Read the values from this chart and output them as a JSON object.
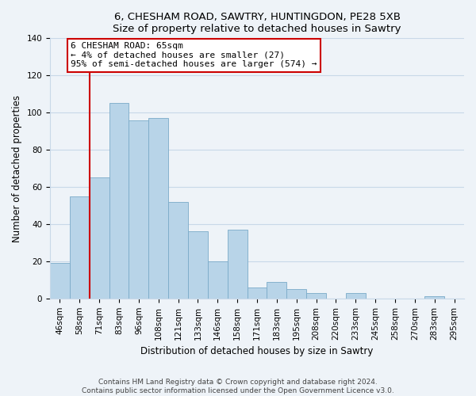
{
  "title_line1": "6, CHESHAM ROAD, SAWTRY, HUNTINGDON, PE28 5XB",
  "title_line2": "Size of property relative to detached houses in Sawtry",
  "xlabel": "Distribution of detached houses by size in Sawtry",
  "ylabel": "Number of detached properties",
  "categories": [
    "46sqm",
    "58sqm",
    "71sqm",
    "83sqm",
    "96sqm",
    "108sqm",
    "121sqm",
    "133sqm",
    "146sqm",
    "158sqm",
    "171sqm",
    "183sqm",
    "195sqm",
    "208sqm",
    "220sqm",
    "233sqm",
    "245sqm",
    "258sqm",
    "270sqm",
    "283sqm",
    "295sqm"
  ],
  "values": [
    19,
    55,
    65,
    105,
    96,
    97,
    52,
    36,
    20,
    37,
    6,
    9,
    5,
    3,
    0,
    3,
    0,
    0,
    0,
    1,
    0
  ],
  "bar_color": "#b8d4e8",
  "bar_edge_color": "#7aaac8",
  "vline_x": 1.5,
  "vline_color": "#cc0000",
  "annotation_line1": "6 CHESHAM ROAD: 65sqm",
  "annotation_line2": "← 4% of detached houses are smaller (27)",
  "annotation_line3": "95% of semi-detached houses are larger (574) →",
  "annotation_box_edgecolor": "#cc0000",
  "annotation_box_facecolor": "#ffffff",
  "ylim": [
    0,
    140
  ],
  "yticks": [
    0,
    20,
    40,
    60,
    80,
    100,
    120,
    140
  ],
  "footer_line1": "Contains HM Land Registry data © Crown copyright and database right 2024.",
  "footer_line2": "Contains public sector information licensed under the Open Government Licence v3.0.",
  "background_color": "#eef3f8",
  "plot_background_color": "#eef3f8",
  "grid_color": "#c8d8e8",
  "title_fontsize": 9.5,
  "label_fontsize": 8.5,
  "tick_fontsize": 7.5,
  "annot_fontsize": 8.0,
  "footer_fontsize": 6.5
}
